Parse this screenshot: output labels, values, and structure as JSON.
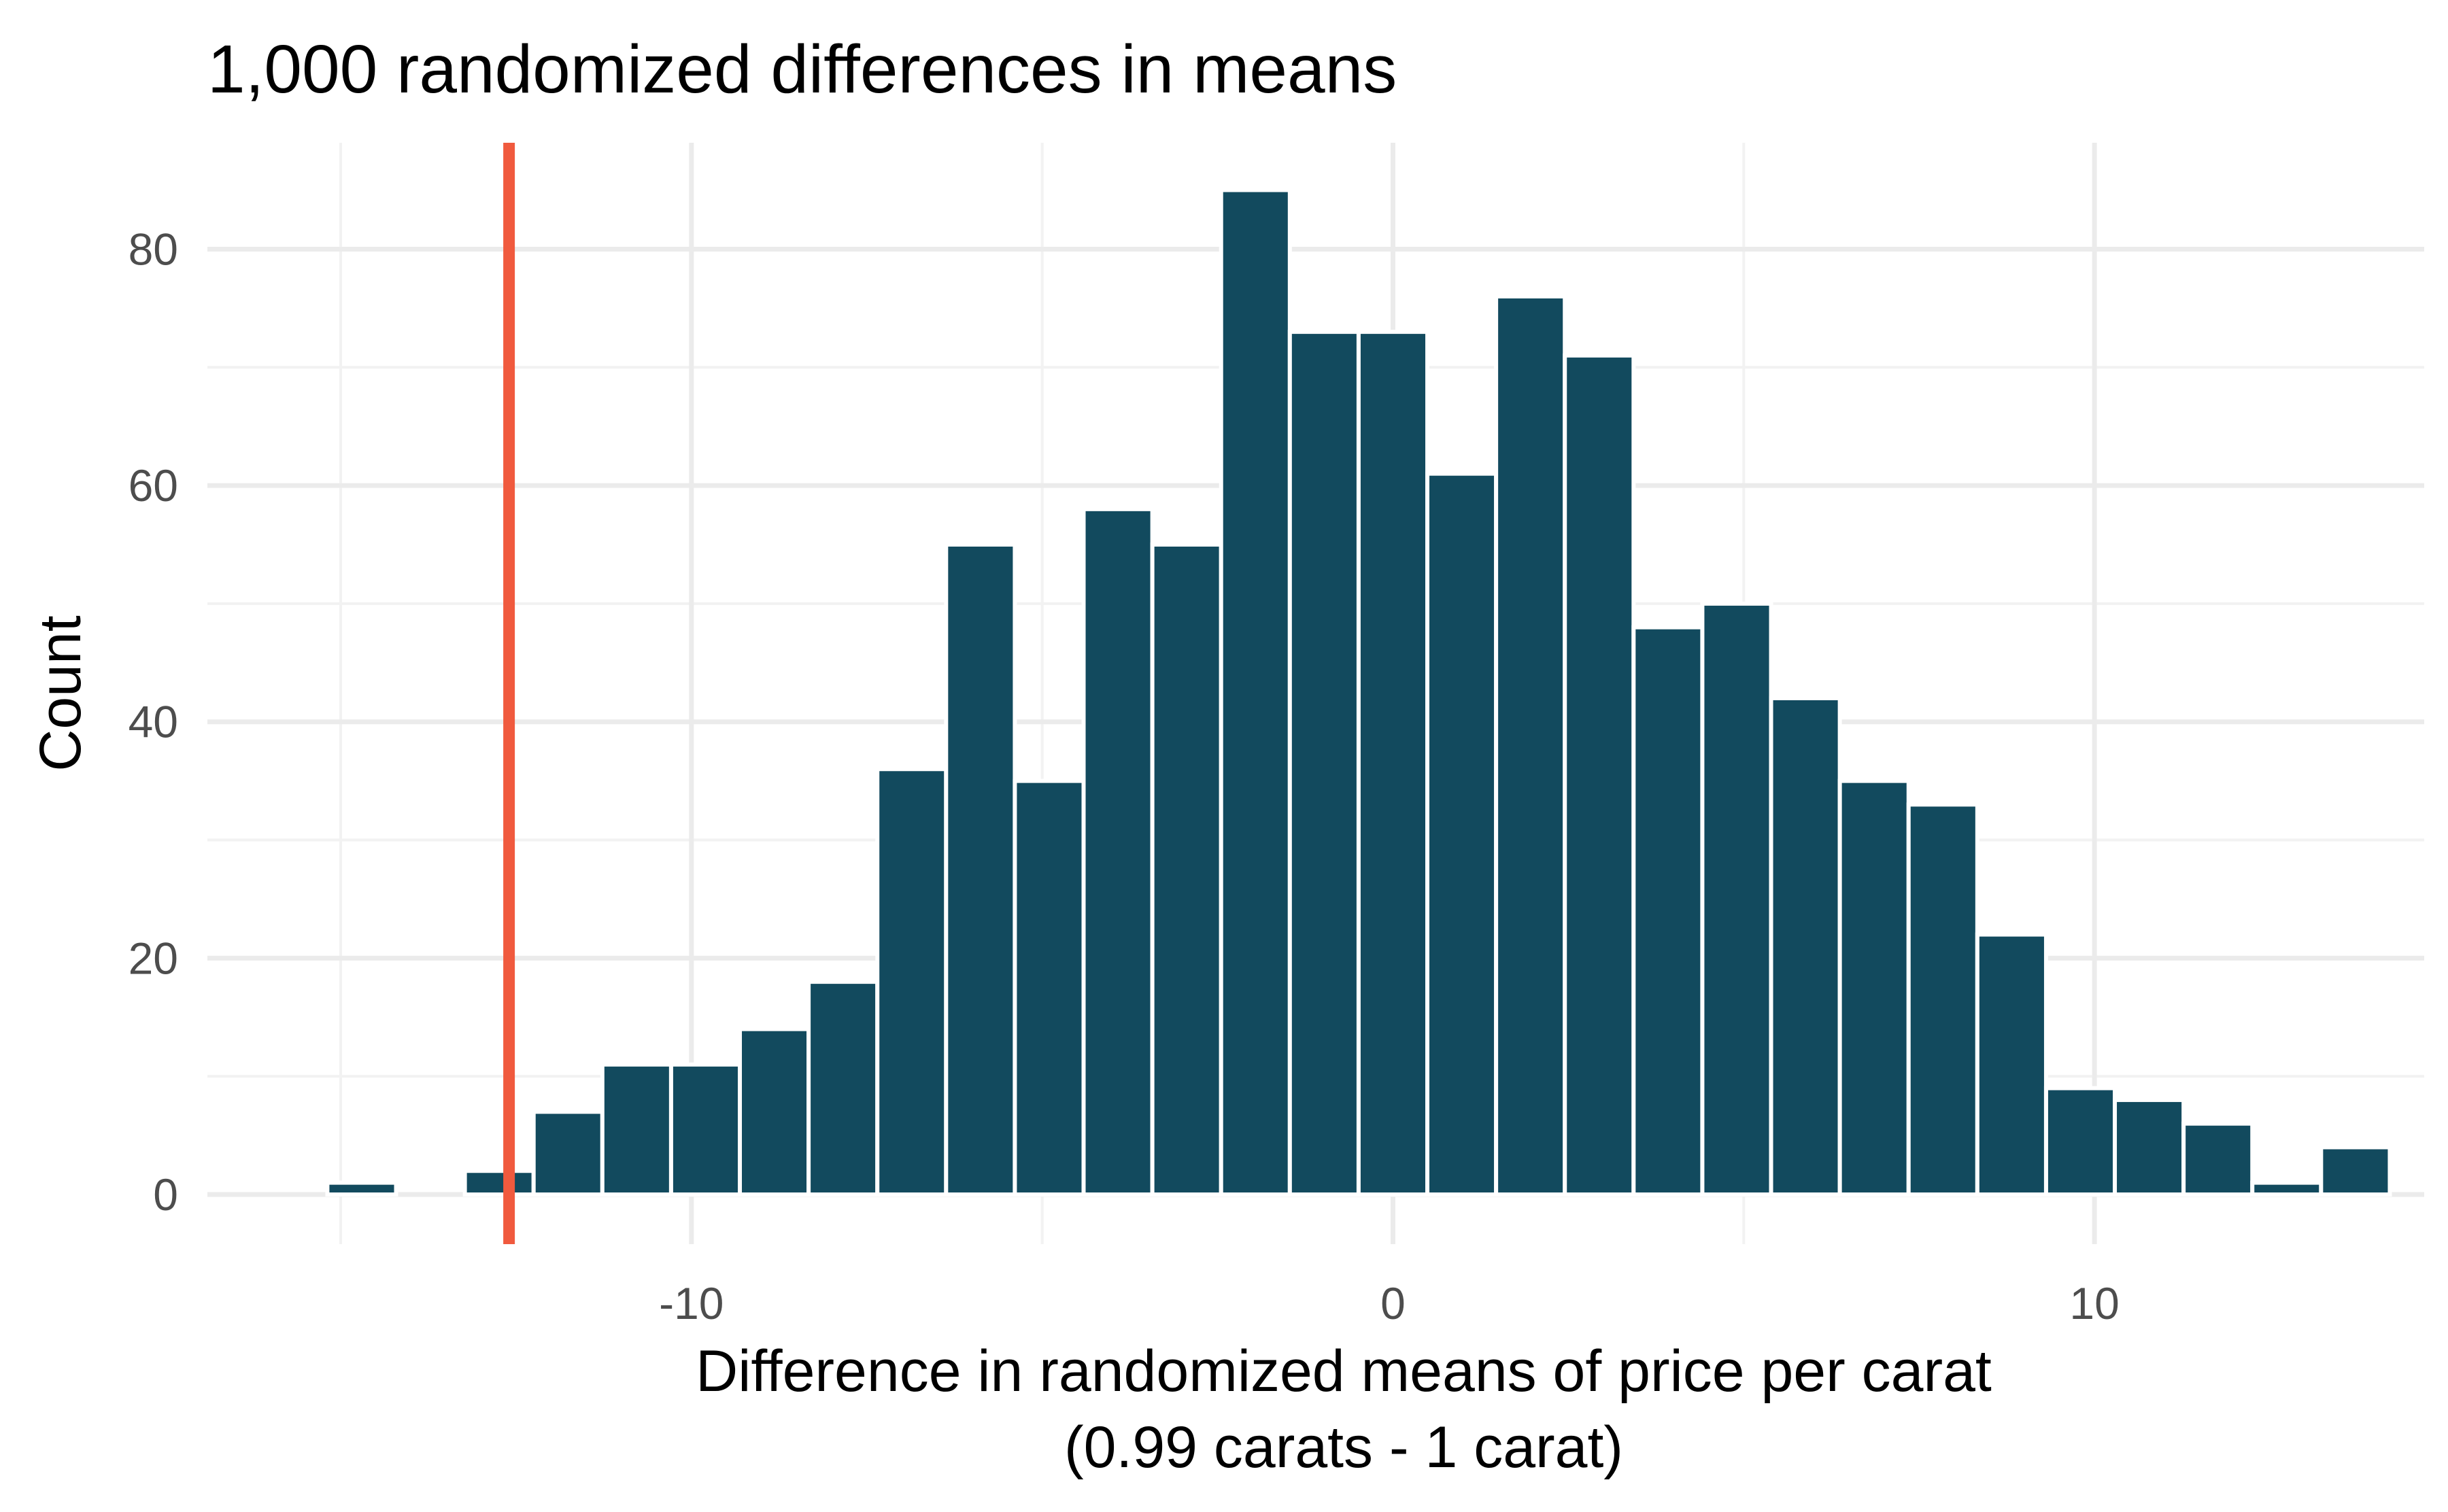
{
  "chart_data": {
    "type": "bar",
    "title": "1,000 randomized differences in means",
    "xlabel": "Difference in randomized means of price per carat",
    "xlabel_line2": "(0.99 carats - 1 carat)",
    "ylabel": "Count",
    "x_ticks": [
      "-10",
      "0",
      "10"
    ],
    "x_tick_values": [
      -10,
      0,
      10
    ],
    "y_ticks": [
      "0",
      "20",
      "40",
      "60",
      "80"
    ],
    "y_tick_values": [
      0,
      20,
      40,
      60,
      80
    ],
    "xlim": [
      -16.9,
      14.7
    ],
    "ylim": [
      -4.2,
      89.0
    ],
    "bin_width": 0.98,
    "bin_centers": [
      -14.7,
      -13.72,
      -12.74,
      -11.76,
      -10.78,
      -9.8,
      -8.82,
      -7.84,
      -6.86,
      -5.88,
      -4.9,
      -3.92,
      -2.94,
      -1.96,
      -0.98,
      0.0,
      0.98,
      1.96,
      2.94,
      3.92,
      4.9,
      5.88,
      6.86,
      7.84,
      8.82,
      9.8,
      10.78,
      11.76,
      12.74,
      13.72
    ],
    "values": [
      1,
      0,
      2,
      7,
      11,
      11,
      14,
      18,
      36,
      55,
      35,
      58,
      55,
      85,
      73,
      73,
      61,
      76,
      71,
      48,
      50,
      42,
      35,
      33,
      22,
      9,
      8,
      6,
      1,
      4
    ],
    "reference_line_x": -12.6,
    "grid": true,
    "colors": {
      "bar_fill": "#124a5e",
      "bar_outline": "#ffffff",
      "reference_line": "#f05a3e",
      "grid_major": "#ebebeb",
      "grid_minor": "#f2f2f2"
    }
  }
}
